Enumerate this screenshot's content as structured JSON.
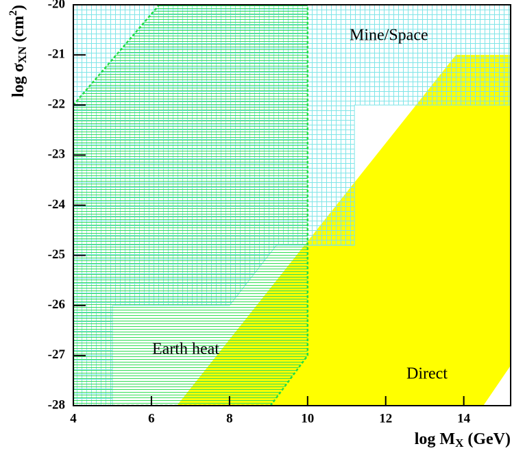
{
  "chart_data": {
    "type": "region",
    "x_label": {
      "main": "log M",
      "sub": "X",
      "rest": " (GeV)"
    },
    "y_label": {
      "main": "log σ",
      "sub": "XN",
      "rest": " (cm",
      "sup": "2",
      "end": ")"
    },
    "xlim": [
      4,
      15.2
    ],
    "ylim": [
      -28,
      -20
    ],
    "xticks": [
      4,
      6,
      8,
      10,
      12,
      14
    ],
    "yticks": [
      -28,
      -27,
      -26,
      -25,
      -24,
      -23,
      -22,
      -21,
      -20
    ],
    "series": [
      {
        "name": "Direct",
        "color": "#ffff00",
        "fill": "solid",
        "x": [
          6.65,
          13.8,
          15.2,
          15.2,
          14.5
        ],
        "y": [
          -28,
          -21,
          -21,
          -27.2,
          -28
        ]
      },
      {
        "name": "Mine/Space",
        "color": "#7fe5e8",
        "fill": "grid",
        "x": [
          4,
          15.2,
          15.2,
          11.2,
          11.2,
          9.2,
          8.0,
          5.0,
          5.0,
          4
        ],
        "y": [
          -20,
          -20,
          -22,
          -22,
          -24.8,
          -24.8,
          -26,
          -26,
          -28,
          -28
        ]
      },
      {
        "name": "Earth heat",
        "color": "#22dd44",
        "fill": "hatch",
        "x": [
          4,
          6.2,
          10,
          10,
          9.05,
          4
        ],
        "y": [
          -22,
          -20,
          -20,
          -27,
          -28,
          -28
        ]
      }
    ]
  }
}
